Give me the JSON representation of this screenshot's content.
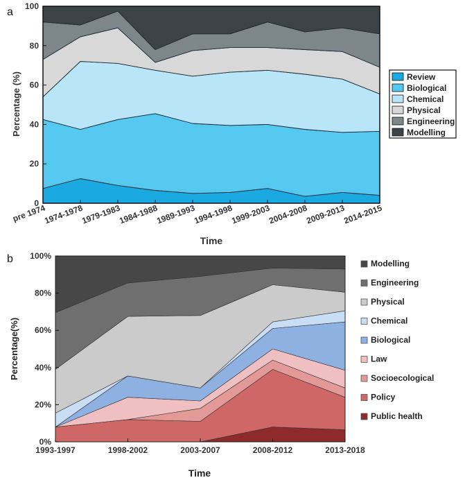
{
  "chart_data": [
    {
      "panel_label": "a",
      "type": "area",
      "stacked": true,
      "categories": [
        "pre 1974",
        "1974-1978",
        "1979-1983",
        "1984-1988",
        "1989-1993",
        "1994-1998",
        "1999-2003",
        "2004-2008",
        "2009-2013",
        "2014-2015"
      ],
      "series": [
        {
          "name": "Review",
          "values": [
            7.5,
            12.5,
            9.0,
            6.5,
            5.0,
            5.5,
            7.5,
            3.5,
            5.5,
            4.0
          ],
          "color": "#1aa9e0"
        },
        {
          "name": "Biological",
          "values": [
            35.0,
            25.0,
            33.5,
            39.0,
            35.5,
            34.0,
            32.5,
            34.0,
            30.5,
            32.5
          ],
          "color": "#55c8f0"
        },
        {
          "name": "Chemical",
          "values": [
            11.5,
            34.5,
            28.5,
            22.0,
            24.0,
            27.0,
            27.5,
            28.0,
            27.0,
            19.0
          ],
          "color": "#b8e6f8"
        },
        {
          "name": "Physical",
          "values": [
            19.0,
            12.5,
            18.0,
            4.0,
            13.0,
            12.5,
            11.5,
            12.5,
            14.0,
            13.5
          ],
          "color": "#d8d8d8"
        },
        {
          "name": "Engineering",
          "values": [
            19.0,
            6.0,
            8.5,
            6.5,
            8.5,
            7.0,
            13.0,
            9.0,
            12.0,
            17.0
          ],
          "color": "#7d8689"
        },
        {
          "name": "Modelling",
          "values": [
            8.0,
            9.5,
            2.5,
            22.0,
            14.0,
            14.0,
            8.0,
            13.0,
            11.0,
            14.0
          ],
          "color": "#3c4346"
        }
      ],
      "xlabel": "Time",
      "ylabel": "Percentage (%)",
      "ylim": [
        0,
        100
      ],
      "yticks": [
        "0",
        "20",
        "40",
        "60",
        "80",
        "100"
      ],
      "legend_position": "right"
    },
    {
      "panel_label": "b",
      "type": "area",
      "stacked": true,
      "categories": [
        "1993-1997",
        "1998-2002",
        "2003-2007",
        "2008-2012",
        "2013-2018"
      ],
      "series": [
        {
          "name": "Public health",
          "values": [
            0.0,
            0.0,
            0.0,
            8.0,
            6.5
          ],
          "color": "#8e2a2a"
        },
        {
          "name": "Policy",
          "values": [
            8.0,
            12.0,
            11.0,
            31.0,
            17.5
          ],
          "color": "#cf6767"
        },
        {
          "name": "Socioecological",
          "values": [
            0.0,
            0.0,
            7.0,
            5.0,
            5.0
          ],
          "color": "#e49999"
        },
        {
          "name": "Law",
          "values": [
            0.0,
            12.0,
            4.0,
            6.0,
            9.5
          ],
          "color": "#f0bfc1"
        },
        {
          "name": "Biological",
          "values": [
            0.0,
            11.5,
            7.0,
            11.0,
            26.0
          ],
          "color": "#8fb1e2"
        },
        {
          "name": "Chemical",
          "values": [
            7.5,
            0.0,
            0.0,
            3.5,
            6.0
          ],
          "color": "#c9ddf5"
        },
        {
          "name": "Physical",
          "values": [
            23.5,
            32.0,
            39.0,
            20.0,
            10.0
          ],
          "color": "#cbcbcb"
        },
        {
          "name": "Engineering",
          "values": [
            30.5,
            18.0,
            21.0,
            9.0,
            12.5
          ],
          "color": "#6f6f6f"
        },
        {
          "name": "Modelling",
          "values": [
            30.5,
            14.5,
            11.0,
            6.5,
            7.0
          ],
          "color": "#474747"
        }
      ],
      "xlabel": "Time",
      "ylabel": "Percentage(%)",
      "ylim": [
        0,
        100
      ],
      "yticks": [
        "0%",
        "20%",
        "40%",
        "60%",
        "80%",
        "100%"
      ],
      "legend_position": "right"
    }
  ]
}
